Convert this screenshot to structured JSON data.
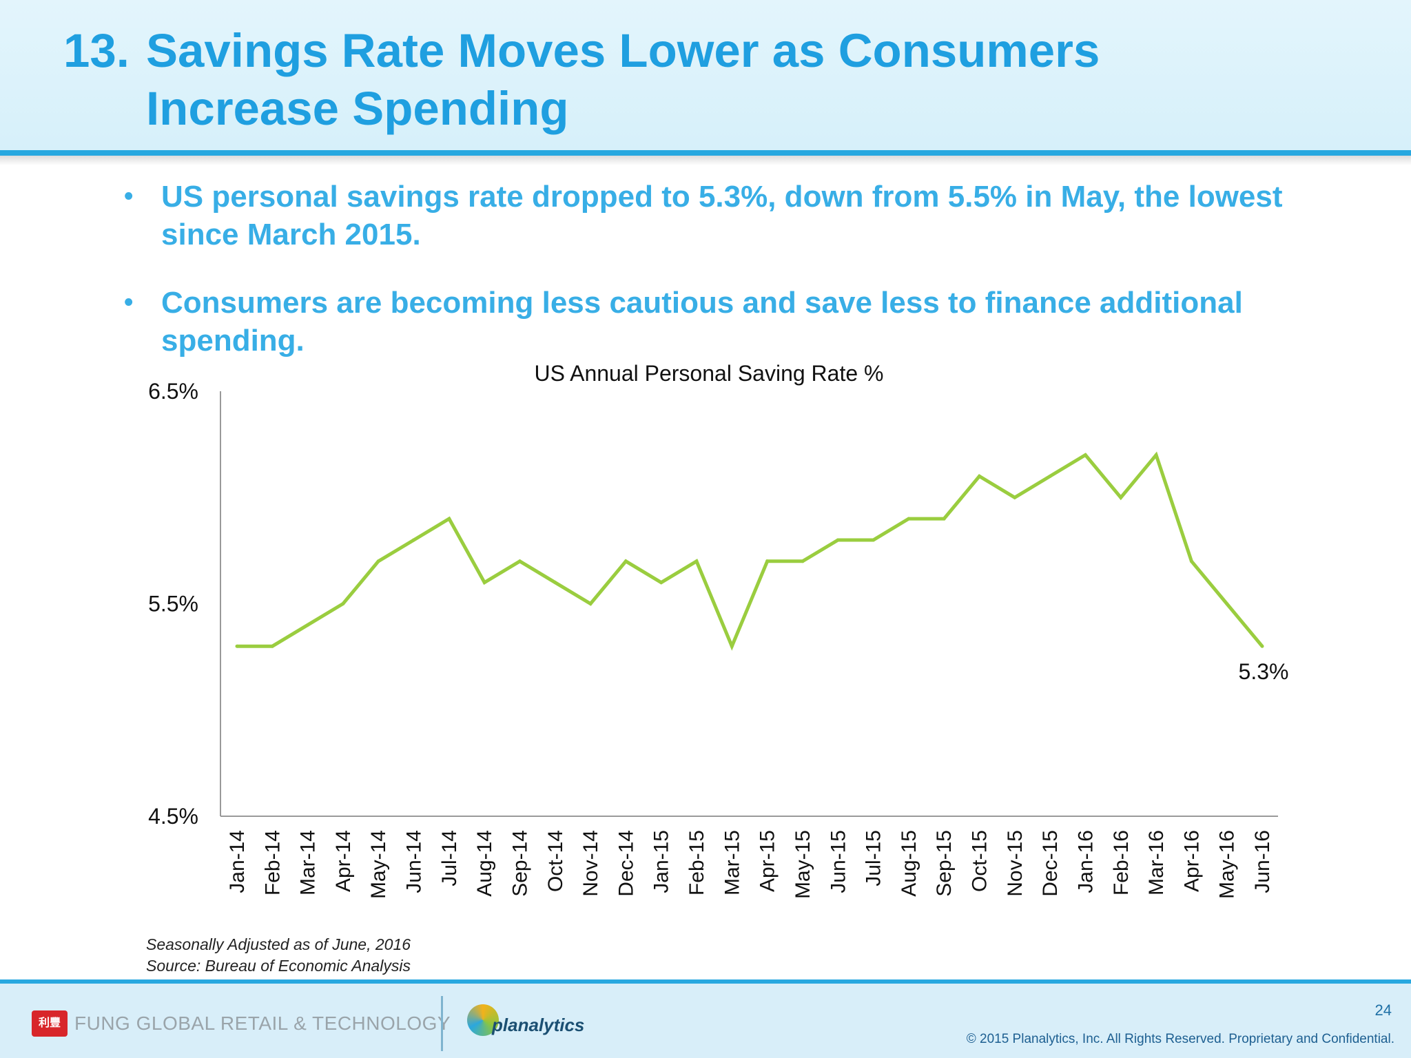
{
  "slide": {
    "title_number": "13.",
    "title_line1": "Savings Rate Moves Lower as Consumers",
    "title_line2": "Increase Spending",
    "bullets": [
      "US personal savings rate dropped to 5.3%, down from 5.5% in May, the lowest since March 2015.",
      "Consumers are becoming less cautious and save less to finance additional spending."
    ],
    "note_line1": "Seasonally Adjusted as of June, 2016",
    "note_line2": "Source: Bureau of Economic Analysis",
    "page_number": "24",
    "copyright": "© 2015 Planalytics, Inc. All Rights Reserved. Proprietary and Confidential.",
    "logo_fung_text": "FUNG GLOBAL RETAIL & TECHNOLOGY",
    "logo_fung_mark": "利豐",
    "logo_planalytics_text": "planalytics"
  },
  "colors": {
    "title": "#1f9fe0",
    "bullet": "#38aee6",
    "line": "#9acd3f",
    "axis": "#999999"
  },
  "chart_data": {
    "type": "line",
    "title": "US Annual Personal Saving Rate %",
    "categories": [
      "Jan-14",
      "Feb-14",
      "Mar-14",
      "Apr-14",
      "May-14",
      "Jun-14",
      "Jul-14",
      "Aug-14",
      "Sep-14",
      "Oct-14",
      "Nov-14",
      "Dec-14",
      "Jan-15",
      "Feb-15",
      "Mar-15",
      "Apr-15",
      "May-15",
      "Jun-15",
      "Jul-15",
      "Aug-15",
      "Sep-15",
      "Oct-15",
      "Nov-15",
      "Dec-15",
      "Jan-16",
      "Feb-16",
      "Mar-16",
      "Apr-16",
      "May-16",
      "Jun-16"
    ],
    "series": [
      {
        "name": "Personal Saving Rate",
        "values": [
          5.3,
          5.3,
          5.4,
          5.5,
          5.7,
          5.8,
          5.9,
          5.6,
          5.7,
          5.6,
          5.5,
          5.7,
          5.6,
          5.7,
          5.3,
          5.7,
          5.7,
          5.8,
          5.8,
          5.9,
          5.9,
          6.1,
          6.0,
          6.1,
          6.2,
          6.0,
          6.2,
          5.7,
          5.5,
          5.3
        ]
      }
    ],
    "ylim": [
      4.5,
      6.5
    ],
    "yticks": [
      "4.5%",
      "5.5%",
      "6.5%"
    ],
    "ytick_values": [
      4.5,
      5.5,
      6.5
    ],
    "end_label": "5.3%",
    "xlabel": "",
    "ylabel": "",
    "grid": false
  }
}
